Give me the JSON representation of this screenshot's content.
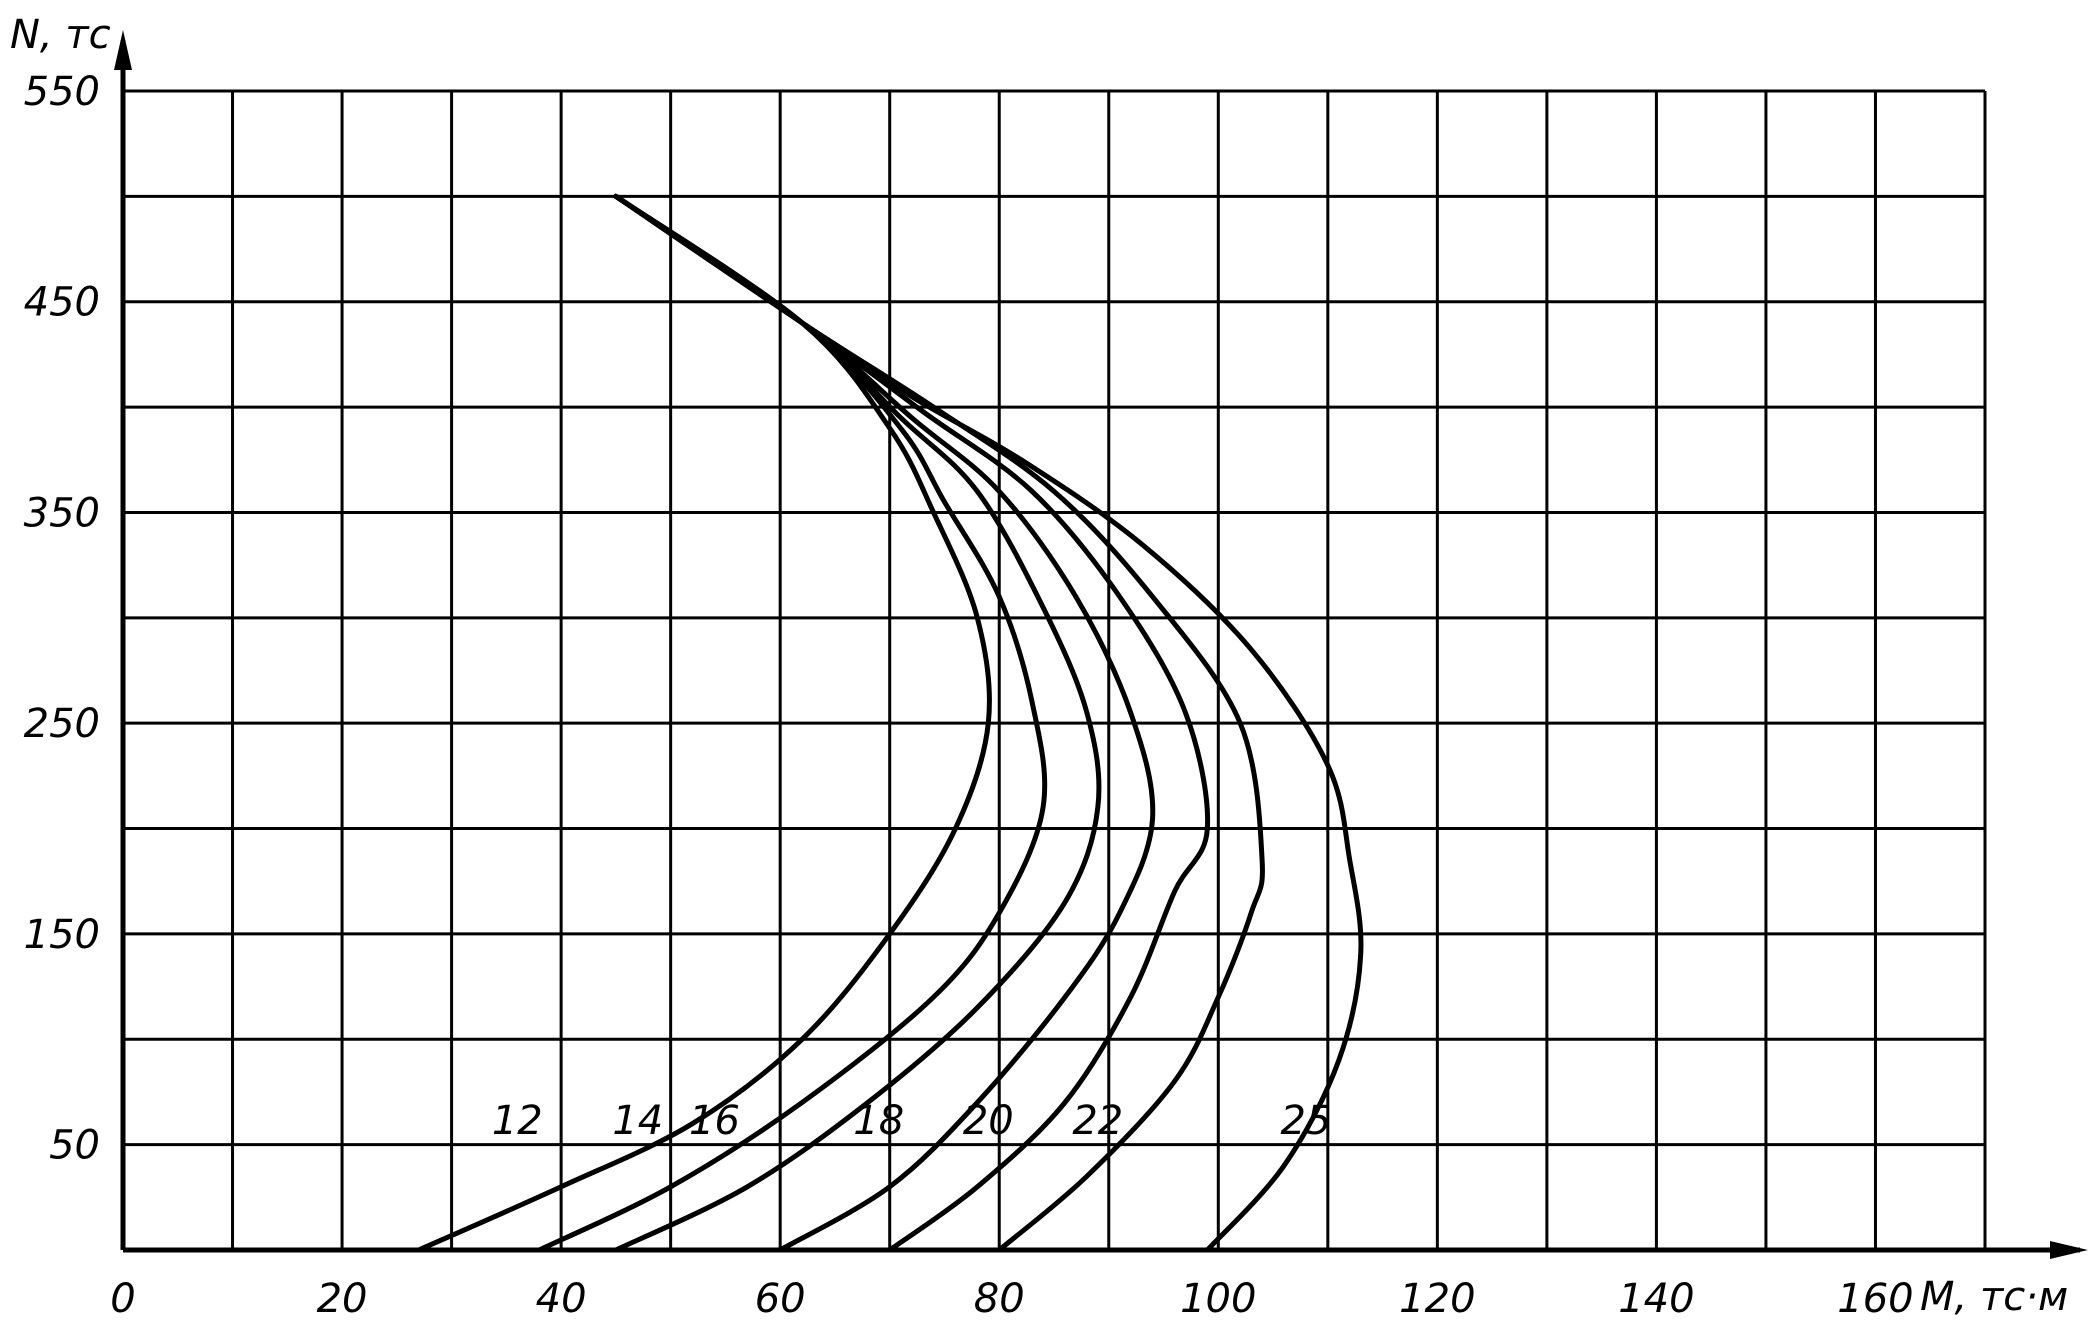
{
  "chart_data": {
    "type": "line",
    "title": "",
    "xlabel": "M, тс·м",
    "ylabel": "N, тс",
    "xlim": [
      0,
      170
    ],
    "ylim": [
      0,
      550
    ],
    "x_ticks": [
      "0",
      "20",
      "40",
      "60",
      "80",
      "100",
      "120",
      "140",
      "160"
    ],
    "y_ticks": [
      "50",
      "150",
      "250",
      "350",
      "450",
      "550"
    ],
    "grid": true,
    "series": [
      {
        "name": "12",
        "points": [
          [
            27,
            0
          ],
          [
            40,
            30
          ],
          [
            52,
            60
          ],
          [
            62,
            100
          ],
          [
            70,
            150
          ],
          [
            76,
            200
          ],
          [
            79,
            250
          ],
          [
            78,
            300
          ],
          [
            74,
            350
          ],
          [
            70,
            390
          ],
          [
            62,
            440
          ],
          [
            45,
            500
          ]
        ]
      },
      {
        "name": "14",
        "points": [
          [
            38,
            0
          ],
          [
            50,
            30
          ],
          [
            62,
            70
          ],
          [
            74,
            120
          ],
          [
            80,
            160
          ],
          [
            84,
            210
          ],
          [
            83,
            260
          ],
          [
            80,
            310
          ],
          [
            75,
            355
          ],
          [
            71,
            390
          ],
          [
            62,
            440
          ],
          [
            45,
            500
          ]
        ]
      },
      {
        "name": "16",
        "points": [
          [
            45,
            0
          ],
          [
            57,
            30
          ],
          [
            68,
            70
          ],
          [
            78,
            115
          ],
          [
            86,
            165
          ],
          [
            89,
            210
          ],
          [
            88,
            255
          ],
          [
            84,
            305
          ],
          [
            78,
            360
          ],
          [
            71,
            395
          ],
          [
            62,
            440
          ],
          [
            45,
            500
          ]
        ]
      },
      {
        "name": "18",
        "points": [
          [
            60,
            0
          ],
          [
            70,
            30
          ],
          [
            78,
            70
          ],
          [
            86,
            120
          ],
          [
            91,
            160
          ],
          [
            94,
            205
          ],
          [
            92,
            255
          ],
          [
            87,
            310
          ],
          [
            80,
            360
          ],
          [
            72,
            395
          ],
          [
            62,
            440
          ],
          [
            45,
            500
          ]
        ]
      },
      {
        "name": "20",
        "points": [
          [
            70,
            0
          ],
          [
            78,
            30
          ],
          [
            86,
            70
          ],
          [
            92,
            120
          ],
          [
            96,
            170
          ],
          [
            99,
            200
          ],
          [
            97,
            255
          ],
          [
            91,
            310
          ],
          [
            83,
            360
          ],
          [
            73,
            398
          ],
          [
            62,
            440
          ],
          [
            45,
            500
          ]
        ]
      },
      {
        "name": "22",
        "points": [
          [
            80,
            0
          ],
          [
            88,
            35
          ],
          [
            96,
            80
          ],
          [
            100,
            120
          ],
          [
            103,
            160
          ],
          [
            104,
            185
          ],
          [
            102,
            250
          ],
          [
            94,
            310
          ],
          [
            85,
            360
          ],
          [
            74,
            400
          ],
          [
            62,
            440
          ],
          [
            45,
            500
          ]
        ]
      },
      {
        "name": "25",
        "points": [
          [
            99,
            0
          ],
          [
            106,
            40
          ],
          [
            111,
            90
          ],
          [
            113,
            140
          ],
          [
            112,
            185
          ],
          [
            110,
            230
          ],
          [
            103,
            285
          ],
          [
            93,
            335
          ],
          [
            82,
            375
          ],
          [
            72,
            405
          ],
          [
            62,
            440
          ],
          [
            45,
            500
          ]
        ]
      }
    ]
  }
}
